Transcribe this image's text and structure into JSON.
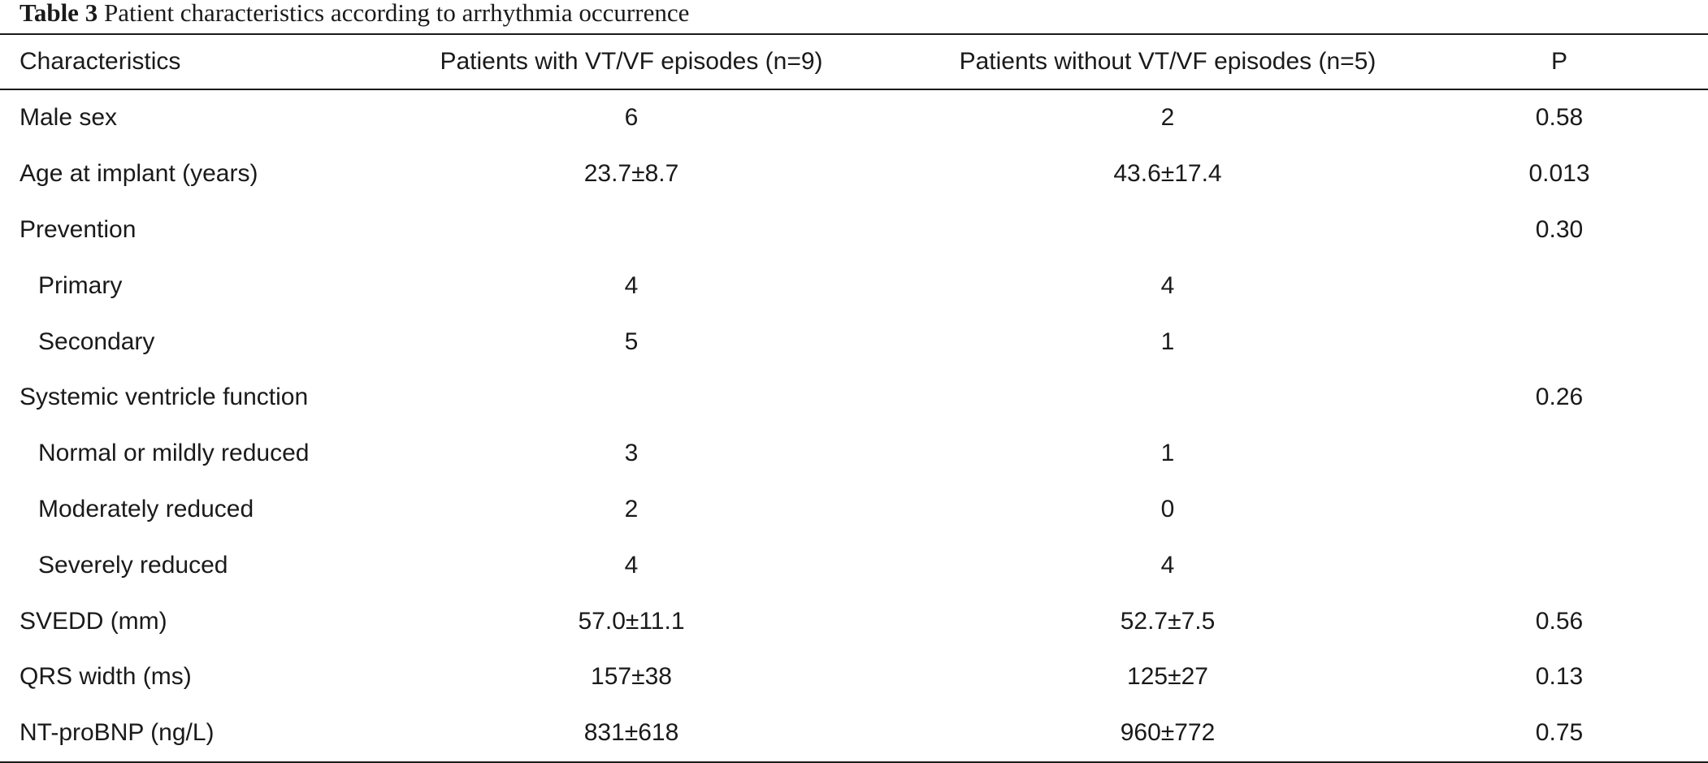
{
  "caption": {
    "label": "Table 3",
    "text": "Patient characteristics according to arrhythmia occurrence"
  },
  "table": {
    "headers": [
      "Characteristics",
      "Patients with VT/VF episodes (n=9)",
      "Patients without VT/VF episodes (n=5)",
      "P"
    ],
    "rows": [
      {
        "label": "Male sex",
        "with": "6",
        "without": "2",
        "p": "0.58",
        "indent": false
      },
      {
        "label": "Age at implant (years)",
        "with": "23.7±8.7",
        "without": "43.6±17.4",
        "p": "0.013",
        "indent": false
      },
      {
        "label": "Prevention",
        "with": "",
        "without": "",
        "p": "0.30",
        "indent": false
      },
      {
        "label": "Primary",
        "with": "4",
        "without": "4",
        "p": "",
        "indent": true
      },
      {
        "label": "Secondary",
        "with": "5",
        "without": "1",
        "p": "",
        "indent": true
      },
      {
        "label": "Systemic ventricle function",
        "with": "",
        "without": "",
        "p": "0.26",
        "indent": false
      },
      {
        "label": "Normal or mildly reduced",
        "with": "3",
        "without": "1",
        "p": "",
        "indent": true
      },
      {
        "label": "Moderately reduced",
        "with": "2",
        "without": "0",
        "p": "",
        "indent": true
      },
      {
        "label": "Severely reduced",
        "with": "4",
        "without": "4",
        "p": "",
        "indent": true
      },
      {
        "label": "SVEDD (mm)",
        "with": "57.0±11.1",
        "without": "52.7±7.5",
        "p": "0.56",
        "indent": false
      },
      {
        "label": "QRS width (ms)",
        "with": "157±38",
        "without": "125±27",
        "p": "0.13",
        "indent": false
      },
      {
        "label": "NT-proBNP (ng/L)",
        "with": "831±618",
        "without": "960±772",
        "p": "0.75",
        "indent": false
      }
    ]
  }
}
